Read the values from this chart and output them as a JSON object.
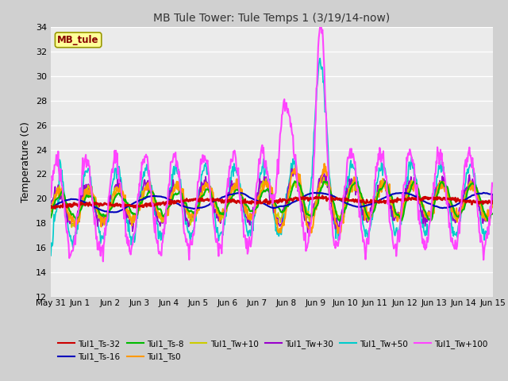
{
  "title": "MB Tule Tower: Tule Temps 1 (3/19/14-now)",
  "ylabel": "Temperature (C)",
  "ylim": [
    12,
    34
  ],
  "yticks": [
    12,
    14,
    16,
    18,
    20,
    22,
    24,
    26,
    28,
    30,
    32,
    34
  ],
  "fig_bg_color": "#d0d0d0",
  "plot_bg": "#ebebeb",
  "legend_label": "MB_tule",
  "legend_box_color": "#ffff99",
  "legend_box_edge": "#999900",
  "legend_text_color": "#880000",
  "series": {
    "Tul1_Ts-32": {
      "color": "#cc0000",
      "lw": 1.8,
      "zorder": 6
    },
    "Tul1_Ts-16": {
      "color": "#0000bb",
      "lw": 1.5,
      "zorder": 5
    },
    "Tul1_Ts-8": {
      "color": "#00bb00",
      "lw": 1.5,
      "zorder": 4
    },
    "Tul1_Ts0": {
      "color": "#ff9900",
      "lw": 1.5,
      "zorder": 4
    },
    "Tul1_Tw+10": {
      "color": "#cccc00",
      "lw": 1.2,
      "zorder": 3
    },
    "Tul1_Tw+30": {
      "color": "#9900cc",
      "lw": 1.2,
      "zorder": 3
    },
    "Tul1_Tw+50": {
      "color": "#00cccc",
      "lw": 1.2,
      "zorder": 3
    },
    "Tul1_Tw+100": {
      "color": "#ff44ff",
      "lw": 1.5,
      "zorder": 7
    }
  },
  "xtick_labels": [
    "May 31",
    "Jun 1",
    "Jun 2",
    "Jun 3",
    "Jun 4",
    "Jun 5",
    "Jun 6",
    "Jun 7",
    "Jun 8",
    "Jun 9",
    "Jun 10",
    "Jun 11",
    "Jun 12",
    "Jun 13",
    "Jun 14",
    "Jun 15"
  ],
  "n_points": 720
}
